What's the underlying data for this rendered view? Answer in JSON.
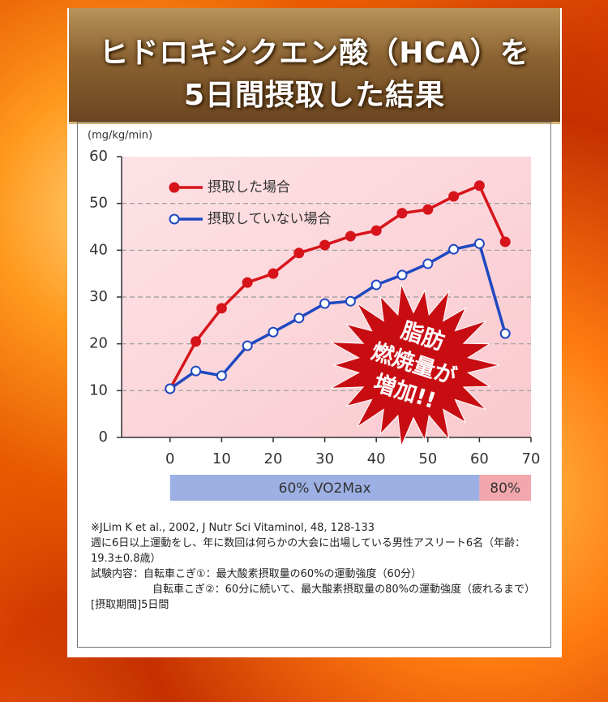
{
  "header": {
    "lines": [
      "ヒドロキシクエン酸（HCA）を",
      "5日間摂取した結果"
    ]
  },
  "chart_data": {
    "type": "line",
    "y_label": "(mg/kg/min)",
    "x": [
      0,
      5,
      10,
      15,
      20,
      25,
      30,
      35,
      40,
      45,
      50,
      55,
      60,
      65
    ],
    "series": [
      {
        "name": "摂取した場合",
        "color": "#d7141b",
        "values": [
          10.4,
          20.5,
          27.6,
          33.1,
          35.0,
          39.4,
          41.1,
          43.0,
          44.2,
          47.9,
          48.7,
          51.5,
          53.8,
          41.8
        ]
      },
      {
        "name": "摂取していない場合",
        "color": "#1e48c0",
        "values": [
          10.4,
          14.2,
          13.2,
          19.6,
          22.5,
          25.5,
          28.6,
          29.1,
          32.6,
          34.7,
          37.1,
          40.2,
          41.4,
          22.2
        ]
      }
    ],
    "xlim": [
      -9.4,
      70
    ],
    "ylim": [
      0,
      60
    ],
    "xticks": [
      0,
      10,
      20,
      30,
      40,
      50,
      60,
      70
    ],
    "yticks": [
      0,
      10,
      20,
      30,
      40,
      50,
      60
    ],
    "grid": true,
    "annotation": [
      "脂肪",
      "燃焼量が",
      "増加!!"
    ],
    "zones": [
      {
        "label": "60% VO2Max",
        "start": 0,
        "end": 60,
        "color": "#9db0e3"
      },
      {
        "label": "80%",
        "start": 60,
        "end": 70,
        "color": "#f2a7ac"
      }
    ]
  },
  "notes": {
    "citation": "※JLim K et al., 2002, J Nutr Sci Vitaminol, 48, 128-133",
    "subjects": "週に6日以上運動をし、年に数回は何らかの大会に出場している男性アスリート6名（年齢：19.3±0.8歳）",
    "test_1": "試験内容：自転車こぎ①：最大酸素摂取量の60%の運動強度（60分）",
    "test_2": "自転車こぎ②：60分に続いて、最大酸素摂取量の80%の運動強度（疲れるまで）",
    "period": "[摂取期間]5日間"
  }
}
